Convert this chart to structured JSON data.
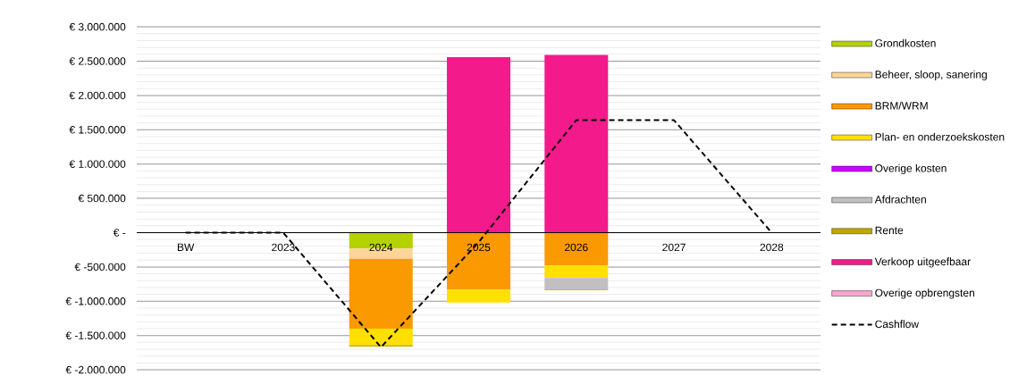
{
  "chart_data": {
    "type": "bar",
    "stacked": true,
    "categories": [
      "BW",
      "2023",
      "2024",
      "2025",
      "2026",
      "2027",
      "2028"
    ],
    "series": [
      {
        "name": "Grondkosten",
        "color": "#b4d200",
        "values": [
          0,
          0,
          -230000,
          0,
          0,
          0,
          0
        ]
      },
      {
        "name": "Beheer, sloop, sanering",
        "color": "#fdd59a",
        "values": [
          0,
          0,
          -150000,
          0,
          0,
          0,
          0
        ]
      },
      {
        "name": "BRM/WRM",
        "color": "#fb9a00",
        "values": [
          0,
          0,
          -1020000,
          -830000,
          -480000,
          0,
          0
        ]
      },
      {
        "name": "Plan- en onderzoekskosten",
        "color": "#ffe000",
        "values": [
          0,
          0,
          -240000,
          -190000,
          -180000,
          0,
          0
        ]
      },
      {
        "name": "Overige kosten",
        "color": "#cc00ff",
        "values": [
          0,
          0,
          0,
          0,
          0,
          0,
          0
        ]
      },
      {
        "name": "Afdrachten",
        "color": "#c0c0c0",
        "values": [
          0,
          0,
          0,
          0,
          -170000,
          0,
          0
        ]
      },
      {
        "name": "Rente",
        "color": "#c0a800",
        "values": [
          0,
          0,
          -20000,
          0,
          -10000,
          0,
          0
        ]
      },
      {
        "name": "Verkoop uitgeefbaar",
        "color": "#f31a8c",
        "values": [
          0,
          0,
          0,
          2560000,
          2590000,
          0,
          0
        ]
      },
      {
        "name": "Overige opbrengsten",
        "color": "#f9a5cd",
        "values": [
          0,
          0,
          0,
          0,
          0,
          0,
          0
        ]
      },
      {
        "name": "Cashflow",
        "type": "line",
        "color": "#000000",
        "line_style": "dashed",
        "marker": "none",
        "values": [
          0,
          0,
          -1670000,
          -140000,
          1640000,
          1640000,
          0
        ]
      }
    ],
    "ylim": [
      -2000000,
      3000000
    ],
    "yticks": [
      {
        "value": -2000000,
        "label": "€ -2.000.000"
      },
      {
        "value": -1500000,
        "label": "€ -1.500.000"
      },
      {
        "value": -1000000,
        "label": "€ -1.000.000"
      },
      {
        "value": -500000,
        "label": "€ -500.000"
      },
      {
        "value": 0,
        "label": "€ -"
      },
      {
        "value": 500000,
        "label": "€ 500.000"
      },
      {
        "value": 1000000,
        "label": "€ 1.000.000"
      },
      {
        "value": 1500000,
        "label": "€ 1.500.000"
      },
      {
        "value": 2000000,
        "label": "€ 2.000.000"
      },
      {
        "value": 2500000,
        "label": "€ 2.500.000"
      },
      {
        "value": 3000000,
        "label": "€ 3.000.000"
      }
    ],
    "grid": "y",
    "legend": "right"
  }
}
